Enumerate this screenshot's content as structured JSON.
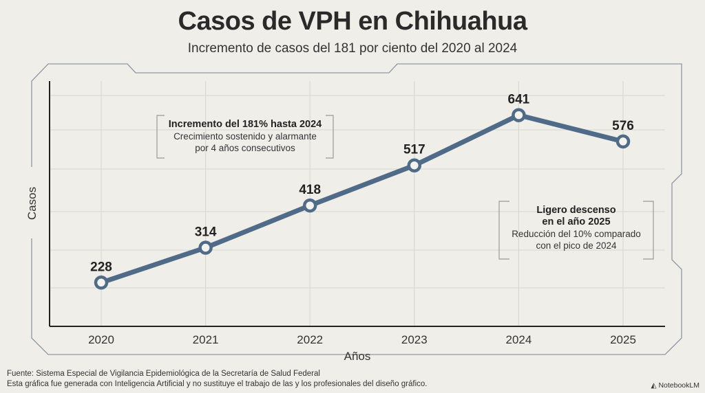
{
  "header": {
    "title": "Casos de VPH en Chihuahua",
    "subtitle": "Incremento de casos del 181 por ciento del 2020 al 2024"
  },
  "chart_data": {
    "type": "line",
    "title": "Casos de VPH en Chihuahua",
    "subtitle": "Incremento de casos del 181 por ciento del 2020 al 2024",
    "xlabel": "Años",
    "ylabel": "Casos",
    "categories": [
      "2020",
      "2021",
      "2022",
      "2023",
      "2024",
      "2025"
    ],
    "series": [
      {
        "name": "Casos",
        "values": [
          228,
          314,
          418,
          517,
          641,
          576
        ]
      }
    ],
    "ylim": [
      120,
      725
    ],
    "grid": true,
    "line_color": "#4f6b87",
    "annotations": [
      {
        "title": "Incremento del 181% hasta 2024",
        "text": [
          "Crecimiento sostenido y alarmante",
          "por 4 años consecutivos"
        ]
      },
      {
        "title": [
          "Ligero descenso",
          "en el año 2025"
        ],
        "text": [
          "Reducción del 10% comparado",
          "con el pico de 2024"
        ]
      }
    ]
  },
  "footer": {
    "source": "Fuente: Sistema Especial de Vigilancia Epidemiológica de la Secretaría de Salud Federal",
    "disclaimer": "Esta gráfica fue generada con Inteligencia Artificial y no sustituye el trabajo de las y los profesionales del diseño gráfico.",
    "brand": "NotebookLM"
  }
}
